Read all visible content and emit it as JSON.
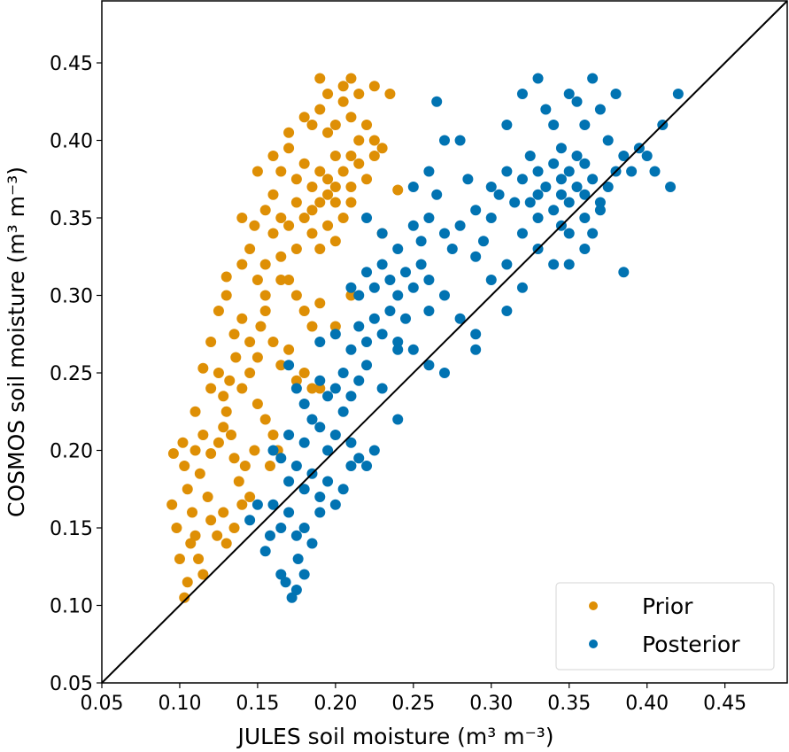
{
  "chart_data": {
    "type": "scatter",
    "title": "",
    "xlabel": "JULES soil moisture (m³ m⁻³)",
    "ylabel": "COSMOS soil moisture (m³ m⁻³)",
    "xlim": [
      0.05,
      0.49
    ],
    "ylim": [
      0.05,
      0.49
    ],
    "xticks": [
      "0.05",
      "0.10",
      "0.15",
      "0.20",
      "0.25",
      "0.30",
      "0.35",
      "0.40",
      "0.45"
    ],
    "yticks": [
      "0.05",
      "0.10",
      "0.15",
      "0.20",
      "0.25",
      "0.30",
      "0.35",
      "0.40",
      "0.45"
    ],
    "grid": false,
    "legend_position": "bottom-right",
    "reference_line": "1:1",
    "series": [
      {
        "name": "Prior",
        "color": "#DE8F05",
        "points": [
          [
            0.103,
            0.105
          ],
          [
            0.105,
            0.115
          ],
          [
            0.1,
            0.13
          ],
          [
            0.098,
            0.15
          ],
          [
            0.095,
            0.165
          ],
          [
            0.096,
            0.198
          ],
          [
            0.103,
            0.19
          ],
          [
            0.105,
            0.175
          ],
          [
            0.108,
            0.16
          ],
          [
            0.11,
            0.145
          ],
          [
            0.112,
            0.13
          ],
          [
            0.115,
            0.12
          ],
          [
            0.107,
            0.14
          ],
          [
            0.102,
            0.205
          ],
          [
            0.11,
            0.2
          ],
          [
            0.113,
            0.185
          ],
          [
            0.118,
            0.17
          ],
          [
            0.12,
            0.155
          ],
          [
            0.124,
            0.145
          ],
          [
            0.128,
            0.16
          ],
          [
            0.13,
            0.14
          ],
          [
            0.135,
            0.15
          ],
          [
            0.11,
            0.225
          ],
          [
            0.115,
            0.21
          ],
          [
            0.12,
            0.198
          ],
          [
            0.125,
            0.205
          ],
          [
            0.128,
            0.215
          ],
          [
            0.13,
            0.225
          ],
          [
            0.133,
            0.21
          ],
          [
            0.135,
            0.195
          ],
          [
            0.138,
            0.18
          ],
          [
            0.14,
            0.165
          ],
          [
            0.145,
            0.17
          ],
          [
            0.142,
            0.19
          ],
          [
            0.148,
            0.2
          ],
          [
            0.115,
            0.253
          ],
          [
            0.12,
            0.24
          ],
          [
            0.125,
            0.25
          ],
          [
            0.128,
            0.235
          ],
          [
            0.132,
            0.245
          ],
          [
            0.136,
            0.26
          ],
          [
            0.14,
            0.24
          ],
          [
            0.145,
            0.25
          ],
          [
            0.15,
            0.23
          ],
          [
            0.155,
            0.22
          ],
          [
            0.16,
            0.21
          ],
          [
            0.158,
            0.19
          ],
          [
            0.163,
            0.2
          ],
          [
            0.12,
            0.27
          ],
          [
            0.125,
            0.29
          ],
          [
            0.13,
            0.3
          ],
          [
            0.135,
            0.275
          ],
          [
            0.14,
            0.285
          ],
          [
            0.145,
            0.27
          ],
          [
            0.15,
            0.26
          ],
          [
            0.152,
            0.28
          ],
          [
            0.155,
            0.3
          ],
          [
            0.16,
            0.27
          ],
          [
            0.165,
            0.255
          ],
          [
            0.17,
            0.265
          ],
          [
            0.175,
            0.245
          ],
          [
            0.18,
            0.25
          ],
          [
            0.185,
            0.24
          ],
          [
            0.19,
            0.24
          ],
          [
            0.13,
            0.312
          ],
          [
            0.14,
            0.32
          ],
          [
            0.145,
            0.33
          ],
          [
            0.15,
            0.31
          ],
          [
            0.155,
            0.32
          ],
          [
            0.16,
            0.34
          ],
          [
            0.165,
            0.325
          ],
          [
            0.17,
            0.31
          ],
          [
            0.175,
            0.3
          ],
          [
            0.18,
            0.29
          ],
          [
            0.185,
            0.28
          ],
          [
            0.19,
            0.295
          ],
          [
            0.2,
            0.28
          ],
          [
            0.21,
            0.3
          ],
          [
            0.14,
            0.35
          ],
          [
            0.148,
            0.345
          ],
          [
            0.155,
            0.355
          ],
          [
            0.16,
            0.365
          ],
          [
            0.165,
            0.35
          ],
          [
            0.17,
            0.345
          ],
          [
            0.175,
            0.36
          ],
          [
            0.18,
            0.35
          ],
          [
            0.185,
            0.34
          ],
          [
            0.19,
            0.33
          ],
          [
            0.195,
            0.345
          ],
          [
            0.2,
            0.335
          ],
          [
            0.205,
            0.35
          ],
          [
            0.21,
            0.36
          ],
          [
            0.15,
            0.38
          ],
          [
            0.16,
            0.39
          ],
          [
            0.165,
            0.38
          ],
          [
            0.17,
            0.395
          ],
          [
            0.175,
            0.375
          ],
          [
            0.18,
            0.385
          ],
          [
            0.185,
            0.37
          ],
          [
            0.19,
            0.38
          ],
          [
            0.195,
            0.375
          ],
          [
            0.2,
            0.39
          ],
          [
            0.205,
            0.38
          ],
          [
            0.21,
            0.37
          ],
          [
            0.215,
            0.385
          ],
          [
            0.22,
            0.375
          ],
          [
            0.225,
            0.39
          ],
          [
            0.17,
            0.405
          ],
          [
            0.18,
            0.415
          ],
          [
            0.185,
            0.41
          ],
          [
            0.19,
            0.42
          ],
          [
            0.195,
            0.405
          ],
          [
            0.2,
            0.41
          ],
          [
            0.205,
            0.425
          ],
          [
            0.21,
            0.415
          ],
          [
            0.215,
            0.4
          ],
          [
            0.22,
            0.41
          ],
          [
            0.225,
            0.4
          ],
          [
            0.23,
            0.395
          ],
          [
            0.19,
            0.44
          ],
          [
            0.195,
            0.43
          ],
          [
            0.205,
            0.435
          ],
          [
            0.21,
            0.44
          ],
          [
            0.215,
            0.43
          ],
          [
            0.225,
            0.435
          ],
          [
            0.235,
            0.43
          ],
          [
            0.24,
            0.368
          ],
          [
            0.23,
            0.34
          ],
          [
            0.2,
            0.36
          ],
          [
            0.19,
            0.36
          ],
          [
            0.195,
            0.365
          ],
          [
            0.185,
            0.355
          ],
          [
            0.2,
            0.37
          ],
          [
            0.21,
            0.39
          ],
          [
            0.175,
            0.33
          ],
          [
            0.165,
            0.31
          ],
          [
            0.155,
            0.29
          ]
        ]
      },
      {
        "name": "Posterior",
        "color": "#0173B2",
        "points": [
          [
            0.172,
            0.105
          ],
          [
            0.175,
            0.11
          ],
          [
            0.168,
            0.115
          ],
          [
            0.18,
            0.12
          ],
          [
            0.176,
            0.13
          ],
          [
            0.165,
            0.12
          ],
          [
            0.155,
            0.135
          ],
          [
            0.158,
            0.145
          ],
          [
            0.165,
            0.15
          ],
          [
            0.15,
            0.165
          ],
          [
            0.145,
            0.155
          ],
          [
            0.16,
            0.165
          ],
          [
            0.17,
            0.16
          ],
          [
            0.175,
            0.145
          ],
          [
            0.18,
            0.15
          ],
          [
            0.185,
            0.14
          ],
          [
            0.19,
            0.16
          ],
          [
            0.17,
            0.18
          ],
          [
            0.175,
            0.19
          ],
          [
            0.18,
            0.175
          ],
          [
            0.185,
            0.185
          ],
          [
            0.19,
            0.17
          ],
          [
            0.195,
            0.18
          ],
          [
            0.2,
            0.165
          ],
          [
            0.205,
            0.175
          ],
          [
            0.21,
            0.19
          ],
          [
            0.16,
            0.2
          ],
          [
            0.165,
            0.195
          ],
          [
            0.17,
            0.21
          ],
          [
            0.18,
            0.205
          ],
          [
            0.185,
            0.22
          ],
          [
            0.19,
            0.215
          ],
          [
            0.195,
            0.2
          ],
          [
            0.2,
            0.21
          ],
          [
            0.205,
            0.225
          ],
          [
            0.21,
            0.205
          ],
          [
            0.215,
            0.195
          ],
          [
            0.22,
            0.19
          ],
          [
            0.225,
            0.2
          ],
          [
            0.175,
            0.24
          ],
          [
            0.18,
            0.23
          ],
          [
            0.19,
            0.245
          ],
          [
            0.195,
            0.235
          ],
          [
            0.2,
            0.24
          ],
          [
            0.205,
            0.25
          ],
          [
            0.21,
            0.235
          ],
          [
            0.215,
            0.245
          ],
          [
            0.22,
            0.255
          ],
          [
            0.23,
            0.24
          ],
          [
            0.24,
            0.22
          ],
          [
            0.17,
            0.255
          ],
          [
            0.19,
            0.27
          ],
          [
            0.2,
            0.275
          ],
          [
            0.21,
            0.265
          ],
          [
            0.215,
            0.28
          ],
          [
            0.22,
            0.27
          ],
          [
            0.225,
            0.285
          ],
          [
            0.23,
            0.275
          ],
          [
            0.235,
            0.29
          ],
          [
            0.24,
            0.27
          ],
          [
            0.245,
            0.285
          ],
          [
            0.25,
            0.265
          ],
          [
            0.26,
            0.255
          ],
          [
            0.27,
            0.25
          ],
          [
            0.21,
            0.305
          ],
          [
            0.215,
            0.3
          ],
          [
            0.22,
            0.315
          ],
          [
            0.225,
            0.305
          ],
          [
            0.23,
            0.32
          ],
          [
            0.235,
            0.31
          ],
          [
            0.24,
            0.3
          ],
          [
            0.245,
            0.315
          ],
          [
            0.25,
            0.305
          ],
          [
            0.255,
            0.32
          ],
          [
            0.26,
            0.31
          ],
          [
            0.27,
            0.3
          ],
          [
            0.28,
            0.285
          ],
          [
            0.29,
            0.275
          ],
          [
            0.29,
            0.265
          ],
          [
            0.31,
            0.29
          ],
          [
            0.23,
            0.34
          ],
          [
            0.24,
            0.33
          ],
          [
            0.25,
            0.345
          ],
          [
            0.255,
            0.335
          ],
          [
            0.26,
            0.35
          ],
          [
            0.27,
            0.34
          ],
          [
            0.275,
            0.33
          ],
          [
            0.28,
            0.345
          ],
          [
            0.29,
            0.325
          ],
          [
            0.295,
            0.335
          ],
          [
            0.3,
            0.35
          ],
          [
            0.31,
            0.32
          ],
          [
            0.32,
            0.34
          ],
          [
            0.25,
            0.37
          ],
          [
            0.26,
            0.38
          ],
          [
            0.265,
            0.365
          ],
          [
            0.27,
            0.4
          ],
          [
            0.28,
            0.4
          ],
          [
            0.285,
            0.375
          ],
          [
            0.29,
            0.355
          ],
          [
            0.3,
            0.37
          ],
          [
            0.305,
            0.365
          ],
          [
            0.31,
            0.38
          ],
          [
            0.315,
            0.36
          ],
          [
            0.32,
            0.375
          ],
          [
            0.325,
            0.39
          ],
          [
            0.33,
            0.38
          ],
          [
            0.335,
            0.37
          ],
          [
            0.34,
            0.385
          ],
          [
            0.345,
            0.375
          ],
          [
            0.35,
            0.36
          ],
          [
            0.355,
            0.37
          ],
          [
            0.36,
            0.385
          ],
          [
            0.365,
            0.375
          ],
          [
            0.37,
            0.36
          ],
          [
            0.375,
            0.37
          ],
          [
            0.38,
            0.38
          ],
          [
            0.34,
            0.355
          ],
          [
            0.345,
            0.345
          ],
          [
            0.35,
            0.34
          ],
          [
            0.36,
            0.35
          ],
          [
            0.365,
            0.34
          ],
          [
            0.37,
            0.355
          ],
          [
            0.33,
            0.33
          ],
          [
            0.34,
            0.32
          ],
          [
            0.35,
            0.32
          ],
          [
            0.36,
            0.33
          ],
          [
            0.32,
            0.305
          ],
          [
            0.33,
            0.35
          ],
          [
            0.325,
            0.36
          ],
          [
            0.31,
            0.41
          ],
          [
            0.32,
            0.43
          ],
          [
            0.33,
            0.44
          ],
          [
            0.335,
            0.42
          ],
          [
            0.34,
            0.41
          ],
          [
            0.345,
            0.395
          ],
          [
            0.35,
            0.43
          ],
          [
            0.355,
            0.425
          ],
          [
            0.36,
            0.41
          ],
          [
            0.365,
            0.44
          ],
          [
            0.37,
            0.42
          ],
          [
            0.375,
            0.4
          ],
          [
            0.38,
            0.43
          ],
          [
            0.385,
            0.39
          ],
          [
            0.39,
            0.38
          ],
          [
            0.395,
            0.395
          ],
          [
            0.4,
            0.39
          ],
          [
            0.405,
            0.38
          ],
          [
            0.41,
            0.41
          ],
          [
            0.415,
            0.37
          ],
          [
            0.42,
            0.43
          ],
          [
            0.385,
            0.315
          ],
          [
            0.33,
            0.365
          ],
          [
            0.355,
            0.39
          ],
          [
            0.345,
            0.365
          ],
          [
            0.36,
            0.365
          ],
          [
            0.35,
            0.38
          ],
          [
            0.3,
            0.31
          ],
          [
            0.265,
            0.425
          ],
          [
            0.24,
            0.265
          ],
          [
            0.22,
            0.35
          ],
          [
            0.26,
            0.29
          ]
        ]
      }
    ]
  }
}
